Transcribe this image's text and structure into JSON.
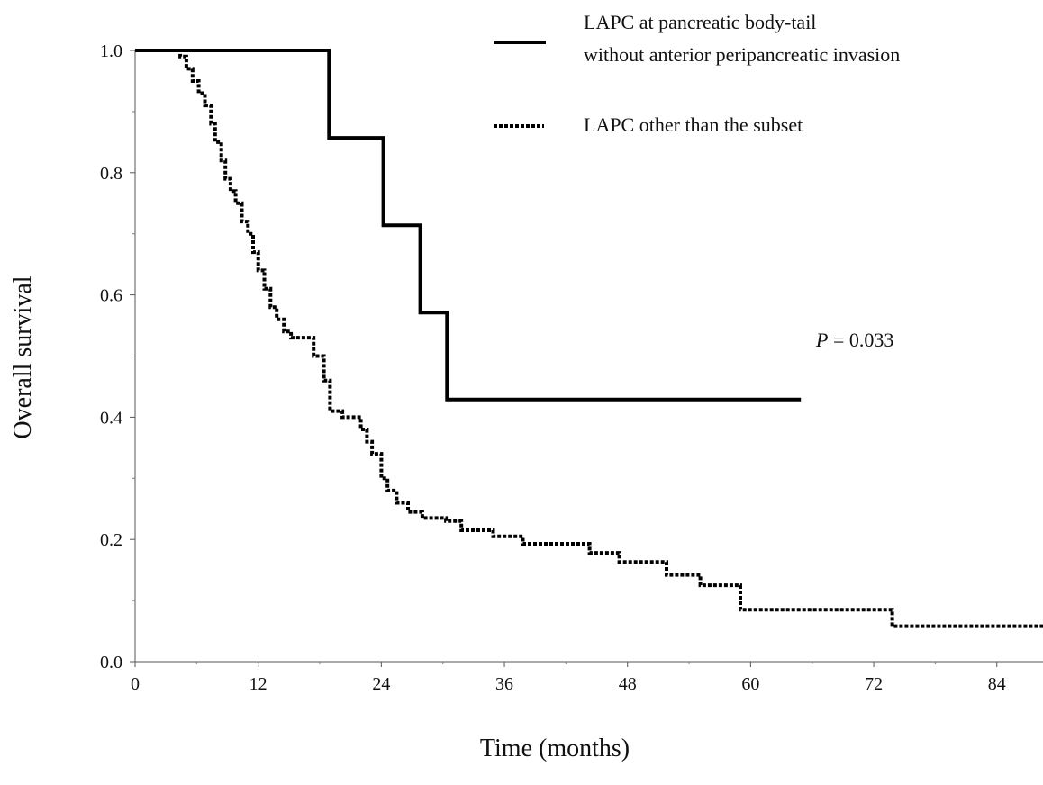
{
  "chart_data": {
    "type": "line",
    "title": "",
    "xlabel": "Time (months)",
    "ylabel": "Overall survival",
    "xlim": [
      0,
      88.5
    ],
    "ylim": [
      0,
      1
    ],
    "x_ticks": [
      "0",
      "12",
      "24",
      "36",
      "48",
      "60",
      "72",
      "84"
    ],
    "y_ticks": [
      "0.0",
      "0.2",
      "0.4",
      "0.6",
      "0.8",
      "1.0"
    ],
    "grid": false,
    "legend_position": "top-right",
    "annotation": {
      "label": "P",
      "text": " = 0.033"
    },
    "series": [
      {
        "name": "LAPC at pancreatic body-tail without anterior peripancreatic invasion",
        "legend_lines": [
          "LAPC at pancreatic  body-tail",
          "without  anterior  peripancreatic  invasion"
        ],
        "style": "solid",
        "color": "#000000",
        "x": [
          0,
          18.9,
          24.2,
          27.8,
          30.4,
          64.9
        ],
        "y": [
          1.0,
          0.857,
          0.714,
          0.571,
          0.429,
          0.429
        ]
      },
      {
        "name": "LAPC other than the subset",
        "legend_lines": [
          "LAPC  other  than  the  subset"
        ],
        "style": "dotted",
        "color": "#000000",
        "x": [
          0,
          4.4,
          5.0,
          5.6,
          6.2,
          6.8,
          7.4,
          7.8,
          8.4,
          8.8,
          9.3,
          9.8,
          10.4,
          11.0,
          11.5,
          12.0,
          12.6,
          13.2,
          13.8,
          14.5,
          15.2,
          17.4,
          18.4,
          19.0,
          20.2,
          22.0,
          22.6,
          23.1,
          24.0,
          24.6,
          25.5,
          26.6,
          28.0,
          30.3,
          31.8,
          34.9,
          37.8,
          44.3,
          47.2,
          51.8,
          55.1,
          59.0,
          73.8,
          88.5
        ],
        "y": [
          1.0,
          0.99,
          0.97,
          0.95,
          0.93,
          0.91,
          0.88,
          0.85,
          0.82,
          0.79,
          0.77,
          0.75,
          0.72,
          0.7,
          0.67,
          0.64,
          0.61,
          0.58,
          0.56,
          0.54,
          0.53,
          0.5,
          0.46,
          0.41,
          0.4,
          0.38,
          0.36,
          0.34,
          0.3,
          0.28,
          0.26,
          0.245,
          0.235,
          0.23,
          0.215,
          0.205,
          0.193,
          0.178,
          0.163,
          0.142,
          0.125,
          0.085,
          0.058,
          0.058
        ]
      }
    ]
  }
}
